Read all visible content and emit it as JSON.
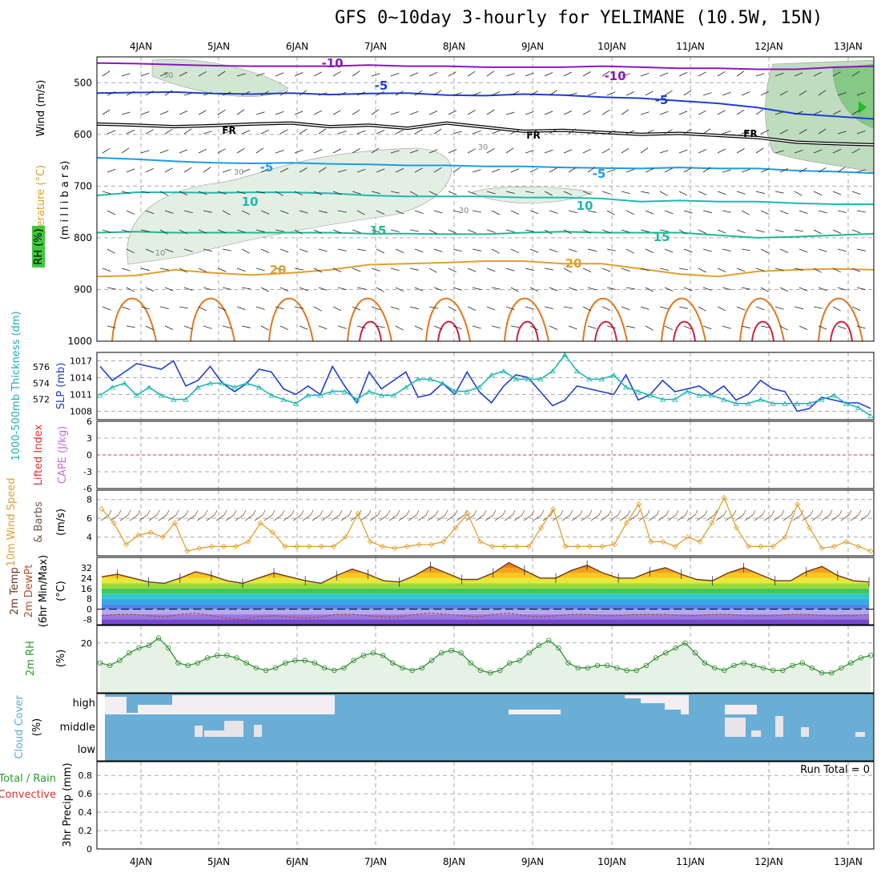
{
  "title": "GFS 0~10day 3-hourly for YELIMANE (10.5W, 15N)",
  "date_labels": [
    "4JAN",
    "5JAN",
    "6JAN",
    "7JAN",
    "8JAN",
    "9JAN",
    "10JAN",
    "11JAN",
    "12JAN",
    "13JAN"
  ],
  "panel_labels": {
    "p1": {
      "rh": "RH (%)",
      "temperature": "Temperature (°C)",
      "wind": "Wind (m/s)",
      "mb": "(m i l l i b a r s)"
    },
    "p2": {
      "thickness": "1000-500mb Thickness (dm)",
      "slp": "SLP (mb)"
    },
    "p3": {
      "li": "Lifted Index",
      "cape": "CAPE (J/kg)"
    },
    "p4": {
      "wind10": "10m Wind Speed",
      "barbs": "& Barbs",
      "unit": "(m/s)"
    },
    "p5": {
      "temp": "2m Temp",
      "dewpt": "2m DewPt",
      "minmax": "(6hr Min/Max)",
      "unit": "(°C)"
    },
    "p6": {
      "rh": "2m RH",
      "unit": "(%)"
    },
    "p7": {
      "label": "Cloud Cover",
      "unit": "(%)"
    },
    "p8": {
      "total": "Total / Rain",
      "conv": "Convective",
      "precip": "3hr Precip (mm)"
    }
  },
  "run_total": "Run Total = 0",
  "colors": {
    "purple": "#8a16c2",
    "blue": "#1f3fd0",
    "lightblue": "#1f9be0",
    "teal": "#20b8b0",
    "green": "#20b890",
    "orange": "#e0a030",
    "darkorange": "#e07820",
    "red": "#d02040",
    "cloud": "#6aaed6",
    "rhfill": "#e6f2e6"
  },
  "chart_data": [
    {
      "type": "line",
      "title": "Temperature (°C) / Wind (m/s) / RH (%)",
      "ylabel": "millibars",
      "ylim": [
        1000,
        450
      ],
      "yticks": [
        500,
        600,
        700,
        800,
        900,
        1000
      ],
      "contours": [
        {
          "name": "-10",
          "values": [
            462,
            463,
            465,
            467,
            468,
            468,
            468,
            466,
            468,
            468,
            470,
            470,
            470,
            468,
            470,
            472,
            472,
            474,
            474,
            470,
            468
          ]
        },
        {
          "name": "-5",
          "values": [
            520,
            519,
            518,
            521,
            522,
            520,
            523,
            521,
            520,
            524,
            525,
            522,
            524,
            528,
            530,
            535,
            540,
            548,
            560,
            565,
            570
          ]
        },
        {
          "name": "FR",
          "values": [
            580,
            582,
            585,
            583,
            580,
            578,
            585,
            582,
            588,
            578,
            586,
            594,
            592,
            596,
            600,
            598,
            602,
            606,
            615,
            618,
            620
          ]
        },
        {
          "name": "-5",
          "values": [
            645,
            648,
            652,
            655,
            656,
            655,
            657,
            658,
            660,
            660,
            662,
            662,
            664,
            665,
            666,
            664,
            666,
            666,
            670,
            672,
            675
          ]
        },
        {
          "name": "10",
          "values": [
            718,
            712,
            712,
            713,
            712,
            712,
            714,
            718,
            720,
            720,
            720,
            722,
            722,
            724,
            730,
            728,
            730,
            730,
            733,
            735,
            735
          ]
        },
        {
          "name": "15",
          "values": [
            790,
            788,
            790,
            790,
            790,
            790,
            790,
            792,
            792,
            793,
            793,
            790,
            788,
            790,
            790,
            790,
            795,
            800,
            798,
            795,
            792
          ]
        },
        {
          "name": "20",
          "values": [
            875,
            873,
            862,
            868,
            872,
            868,
            862,
            852,
            850,
            848,
            845,
            845,
            850,
            850,
            860,
            870,
            875,
            865,
            862,
            860,
            862
          ]
        }
      ],
      "labels": [
        "-10",
        "-10",
        "-5",
        "-5",
        "FR",
        "FR",
        "FR",
        "-5",
        "-5",
        "10",
        "10",
        "15",
        "15",
        "20",
        "20",
        "30",
        "30",
        "30",
        "10",
        "30"
      ]
    },
    {
      "type": "line",
      "title": "",
      "y_left": {
        "label": "1000-500mb Thickness (dm)",
        "ticks": [
          572,
          574,
          576
        ]
      },
      "y_right": {
        "label": "SLP (mb)",
        "ticks": [
          1008,
          1011,
          1014,
          1017
        ]
      },
      "series": [
        {
          "name": "SLP (mb)",
          "values": [
            1016,
            1013.5,
            1015,
            1016.5,
            1016,
            1015.5,
            1017,
            1012.5,
            1013.5,
            1016,
            1013,
            1011.5,
            1013,
            1015.5,
            1015,
            1012,
            1011,
            1012.5,
            1011,
            1016,
            1012.5,
            1009.5,
            1015,
            1012,
            1013.5,
            1015,
            1010.5,
            1011,
            1013,
            1011,
            1015,
            1011.5,
            1009.5,
            1012.5,
            1014.5,
            1014,
            1011.5,
            1009,
            1010,
            1012.5,
            1012,
            1011.5,
            1011,
            1014.5,
            1010,
            1011,
            1013.5,
            1011.5,
            1012,
            1012.5,
            1011,
            1012.5,
            1010,
            1011,
            1013.5,
            1012,
            1011.5,
            1008,
            1008.5,
            1010.5,
            1010,
            1009.5,
            1009.5,
            1008.5
          ]
        },
        {
          "name": "1000-500mb Thickness (dm)",
          "values": [
            572.5,
            573.5,
            574,
            572.5,
            573.5,
            572.5,
            572,
            572,
            573.5,
            574,
            574,
            573.5,
            574,
            573.5,
            572.5,
            572,
            571.5,
            572.5,
            572.5,
            573,
            573,
            572,
            573,
            572.5,
            572.5,
            573.5,
            574.5,
            574.5,
            574,
            573,
            573,
            573.5,
            575,
            575.5,
            574.5,
            574.5,
            574.5,
            575.5,
            577.5,
            575.5,
            574.5,
            574.5,
            575,
            573.5,
            573,
            572.5,
            572,
            572,
            573,
            572.5,
            572.5,
            572,
            571.5,
            571.5,
            572,
            571.5,
            571.5,
            571.5,
            571.5,
            572,
            572.5,
            571.5,
            571,
            570
          ]
        }
      ]
    },
    {
      "type": "line",
      "title": "",
      "y_left": {
        "label": "Lifted Index",
        "ticks": [
          6,
          3,
          0,
          -3,
          -6
        ]
      },
      "y_right": {
        "label": "CAPE (J/kg)"
      },
      "series": [
        {
          "name": "Lifted Index",
          "values": []
        },
        {
          "name": "CAPE (J/kg)",
          "values": []
        }
      ]
    },
    {
      "type": "line",
      "title": "",
      "ylabel": "(m/s)",
      "yticks": [
        4,
        6,
        8
      ],
      "series": [
        {
          "name": "10m Wind Speed",
          "values": [
            7,
            5.5,
            3.2,
            4.2,
            4.5,
            4,
            5.5,
            2.5,
            2.8,
            3,
            3,
            3,
            3.5,
            5.5,
            4.5,
            3,
            3,
            3,
            3,
            3,
            4,
            6.5,
            3.5,
            3,
            2.8,
            3,
            3.2,
            3.2,
            3.5,
            5,
            6.5,
            3.5,
            3,
            3,
            3,
            3,
            5,
            7,
            3,
            3,
            3,
            3,
            3.2,
            5.5,
            7.5,
            3.5,
            3.5,
            3,
            4,
            3.5,
            5.5,
            8.2,
            5,
            3,
            3,
            3,
            4,
            7.5,
            5,
            2.8,
            3,
            3.5,
            3,
            2.5
          ]
        }
      ]
    },
    {
      "type": "area",
      "title": "",
      "ylabel": "(°C)",
      "yticks": [
        -8,
        0,
        8,
        16,
        24,
        32
      ],
      "series": [
        {
          "name": "2m Temp",
          "values": [
            25,
            27,
            24,
            21,
            20,
            24,
            29,
            26,
            22,
            20,
            24,
            28,
            25,
            22,
            20,
            26,
            31,
            27,
            22,
            21,
            26,
            33,
            28,
            23,
            23,
            28,
            36,
            30,
            24,
            24,
            30,
            34,
            28,
            24,
            24,
            29,
            32,
            27,
            23,
            22,
            28,
            32,
            27,
            22,
            22,
            29,
            33,
            26,
            22,
            21
          ]
        },
        {
          "name": "2m DewPt",
          "values": [
            -5,
            -4,
            -4,
            -5,
            -6,
            -4,
            -3,
            -5,
            -7,
            -8,
            -6,
            -5,
            -6,
            -7,
            -6,
            -4,
            -4,
            -5,
            -6,
            -6,
            -4,
            -3,
            -4,
            -5,
            -6,
            -4,
            -3,
            -5,
            -6,
            -5,
            -4,
            -4,
            -5,
            -5,
            -4,
            -4,
            -4,
            -5,
            -5,
            -4,
            -4,
            -5,
            -5,
            -5,
            -4,
            -4,
            -5,
            -5,
            -5,
            -4
          ]
        }
      ]
    },
    {
      "type": "line",
      "title": "",
      "ylabel": "(%)",
      "yticks": [
        20
      ],
      "series": [
        {
          "name": "2m RH",
          "values": [
            12,
            11,
            13,
            16,
            18,
            19,
            22,
            18,
            12,
            11,
            12,
            14,
            15,
            15,
            14,
            12,
            10,
            9,
            10,
            12,
            13,
            13,
            12,
            10,
            9,
            10,
            13,
            15,
            16,
            15,
            12,
            10,
            9,
            10,
            13,
            16,
            17,
            16,
            12,
            9,
            8,
            9,
            12,
            13,
            16,
            19,
            21,
            18,
            12,
            10,
            10,
            11,
            11,
            10,
            9,
            9,
            11,
            14,
            16,
            18,
            20,
            16,
            12,
            10,
            9,
            11,
            12,
            11,
            10,
            9,
            9,
            11,
            12,
            10,
            8,
            8,
            10,
            12,
            14,
            15
          ]
        }
      ]
    },
    {
      "type": "heatmap",
      "title": "Cloud Cover",
      "ylabel": "(%)",
      "yticks": [
        "high",
        "middle",
        "low"
      ]
    },
    {
      "type": "bar",
      "title": "3hr Precip (mm)",
      "ylim": [
        0,
        1
      ],
      "yticks": [
        0,
        0.2,
        0.4,
        0.6,
        0.8
      ],
      "values": []
    }
  ]
}
